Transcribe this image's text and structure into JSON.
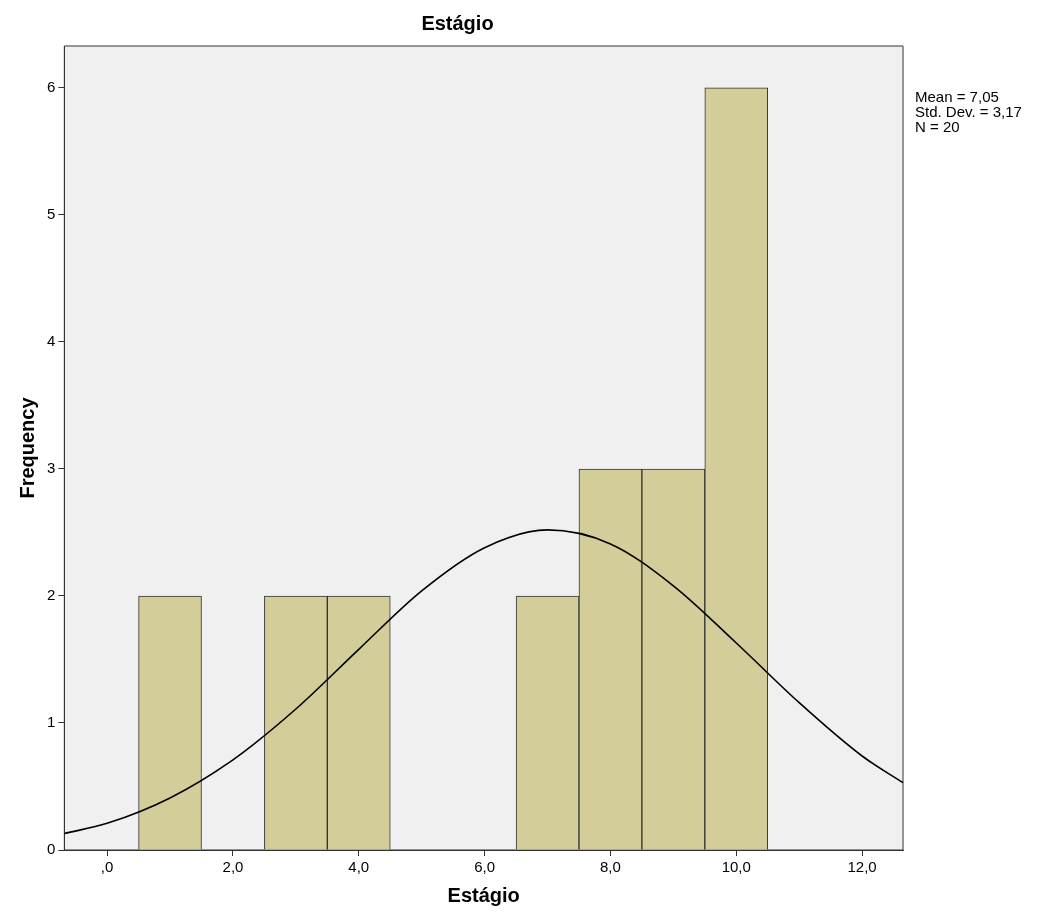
{
  "chart_data": {
    "type": "histogram",
    "title": "Estágio",
    "xlabel": "Estágio",
    "ylabel": "Frequency",
    "bins": [
      0.5,
      1.5,
      2.5,
      3.5,
      4.5,
      5.5,
      6.5,
      7.5,
      8.5,
      9.5,
      10.5
    ],
    "values": [
      2,
      0,
      2,
      2,
      0,
      0,
      2,
      3,
      3,
      6
    ],
    "color": "#d3cd9a",
    "series": [
      {
        "type": "line",
        "color": "#000000",
        "x": [
          -0.68,
          0,
          1,
          2,
          3,
          4,
          5,
          6,
          7,
          8,
          9,
          10,
          11,
          12,
          12.65
        ],
        "values": [
          0.13,
          0.21,
          0.41,
          0.71,
          1.11,
          1.58,
          2.04,
          2.38,
          2.52,
          2.41,
          2.08,
          1.63,
          1.16,
          0.74,
          0.53
        ]
      }
    ],
    "xlim": [
      -0.68,
      12.65
    ],
    "xticks": [
      {
        "value": 0,
        "label": ",0"
      },
      {
        "value": 2,
        "label": "2,0"
      },
      {
        "value": 4,
        "label": "4,0"
      },
      {
        "value": 6,
        "label": "6,0"
      },
      {
        "value": 8,
        "label": "8,0"
      },
      {
        "value": 10,
        "label": "10,0"
      },
      {
        "value": 12,
        "label": "12,0"
      }
    ],
    "ylim": [
      0,
      6.33
    ],
    "yticks": [
      0,
      1,
      2,
      3,
      4,
      5,
      6
    ],
    "annotations": [
      "Mean = 7,05",
      "Std. Dev. = 3,17",
      "N = 20"
    ]
  }
}
